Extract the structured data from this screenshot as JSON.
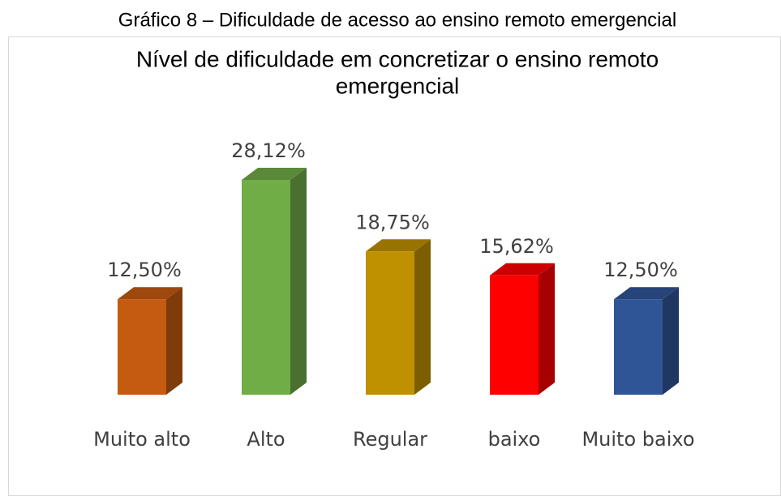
{
  "caption": "Gráfico 8 – Dificuldade de acesso ao ensino remoto emergencial",
  "chart_data": {
    "type": "bar3d",
    "title": [
      "Nível de dificuldade em concretizar o ensino remoto",
      "emergencial"
    ],
    "categories": [
      "Muito alto",
      "Alto",
      "Regular",
      "baixo",
      "Muito baixo"
    ],
    "values": [
      12.5,
      28.12,
      18.75,
      15.62,
      12.5
    ],
    "value_labels": [
      "12,50%",
      "28,12%",
      "18,75%",
      "15,62%",
      "12,50%"
    ],
    "colors": [
      "#c55a11",
      "#70ad47",
      "#bf9000",
      "#ff0000",
      "#2f5597"
    ]
  }
}
